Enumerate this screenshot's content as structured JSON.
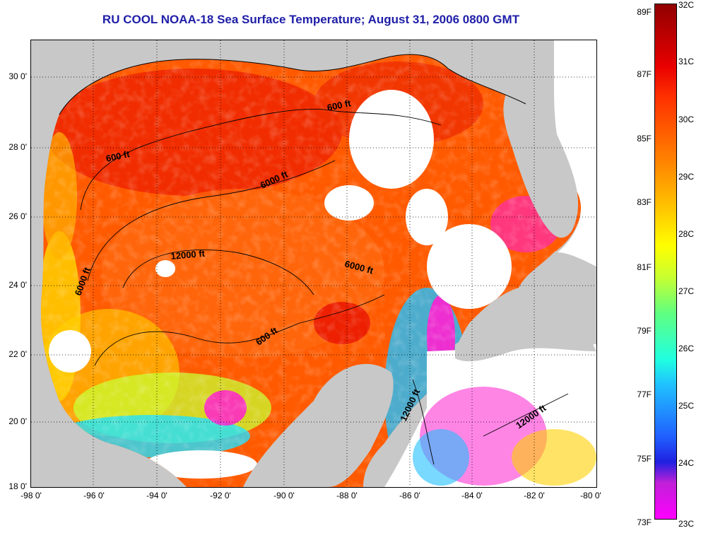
{
  "title": "RU COOL  NOAA-18  Sea Surface Temperature;  August 31, 2006 0800 GMT",
  "latitude_labels": [
    "30 0'",
    "28 0'",
    "26 0'",
    "24 0'",
    "22 0'",
    "20 0'",
    "18 0'"
  ],
  "longitude_labels": [
    "-98 0'",
    "-96 0'",
    "-94 0'",
    "-92 0'",
    "-90 0'",
    "-88 0'",
    "-86 0'",
    "-84 0'",
    "-82 0'",
    "-80 0'"
  ],
  "colorbar": {
    "fahrenheit_labels": [
      "89F",
      "87F",
      "85F",
      "83F",
      "81F",
      "79F",
      "77F",
      "75F",
      "73F"
    ],
    "celsius_labels": [
      "32C",
      "31C",
      "30C",
      "29C",
      "28C",
      "27C",
      "26C",
      "25C",
      "24C",
      "23C"
    ]
  },
  "depth_contour_labels": [
    "600 ft",
    "600 ft",
    "6000 ft",
    "12000 ft",
    "6000 ft",
    "6000 ft",
    "600 ft",
    "12000 ft",
    "12000 ft"
  ],
  "colors": {
    "title": "#1e1ea8",
    "land": "#c8c8c8",
    "cloud": "#ffffff",
    "warm": "#ff4a00",
    "hot": "#e81000",
    "cool": "#20e0ff",
    "cold": "#ff20d0"
  }
}
